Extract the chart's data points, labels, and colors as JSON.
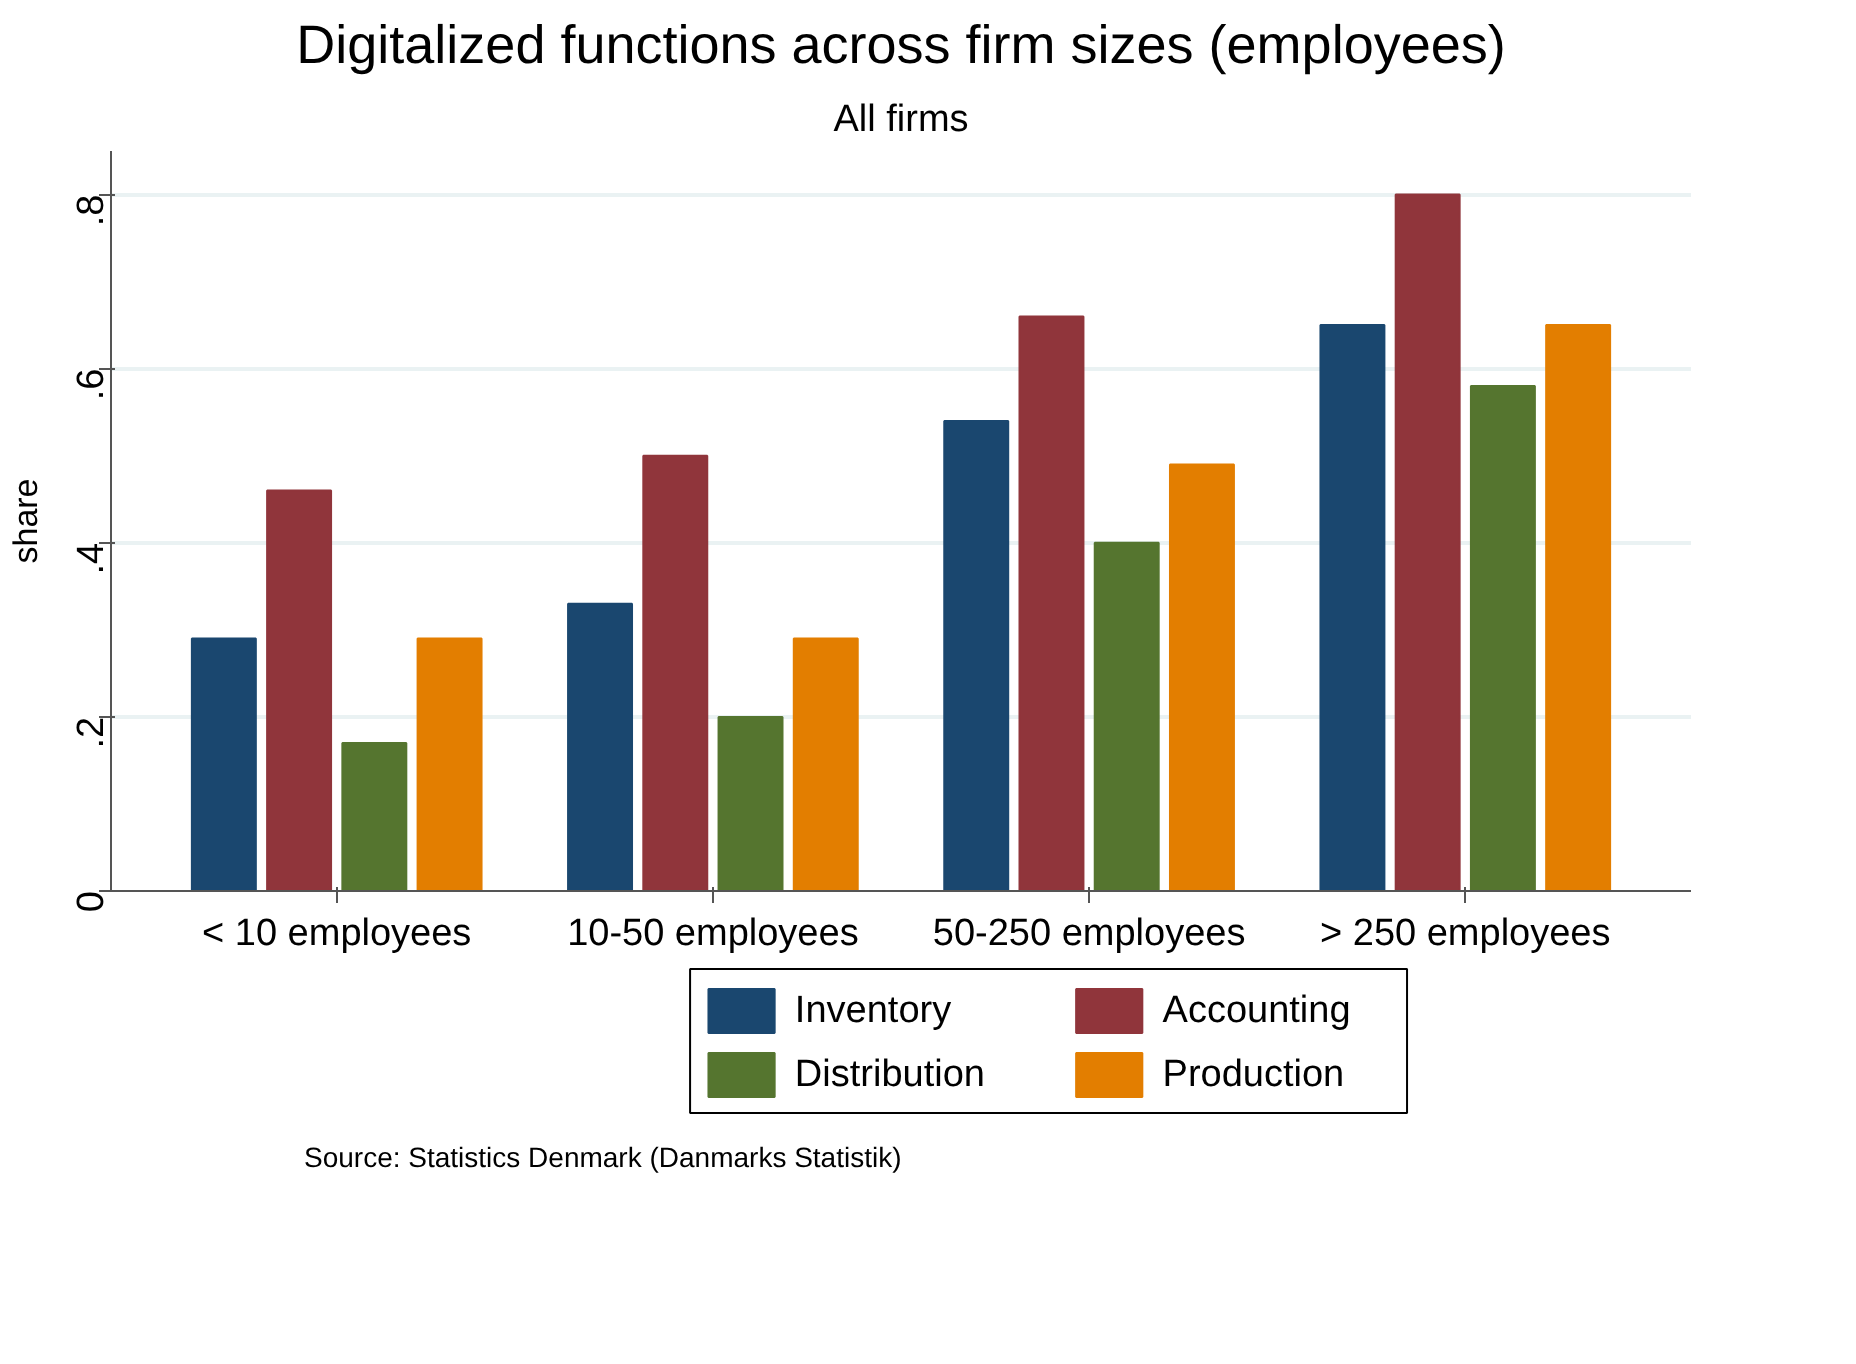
{
  "chart_data": {
    "type": "bar",
    "title": "Digitalized functions across firm sizes (employees)",
    "subtitle": "All firms",
    "ylabel": "share",
    "categories": [
      "< 10 employees",
      "10-50 employees",
      "50-250 employees",
      "> 250 employees"
    ],
    "series": [
      {
        "name": "Inventory",
        "color": "#1a476f",
        "values": [
          0.29,
          0.33,
          0.54,
          0.65
        ]
      },
      {
        "name": "Accounting",
        "color": "#90353b",
        "values": [
          0.46,
          0.5,
          0.66,
          0.8
        ]
      },
      {
        "name": "Distribution",
        "color": "#55752f",
        "values": [
          0.17,
          0.2,
          0.4,
          0.58
        ]
      },
      {
        "name": "Production",
        "color": "#e37e00",
        "values": [
          0.29,
          0.29,
          0.49,
          0.65
        ]
      }
    ],
    "ylim": [
      0,
      0.85
    ],
    "yticks": [
      0,
      {
        "value": 0.2,
        "label": ".2"
      },
      {
        "value": 0.4,
        "label": ".4"
      },
      {
        "value": 0.6,
        "label": ".6"
      },
      {
        "value": 0.8,
        "label": ".8"
      }
    ],
    "grid": "y",
    "legend": "bottom",
    "annotations": [
      "Source: Statistics Denmark (Danmarks Statistik)"
    ]
  }
}
